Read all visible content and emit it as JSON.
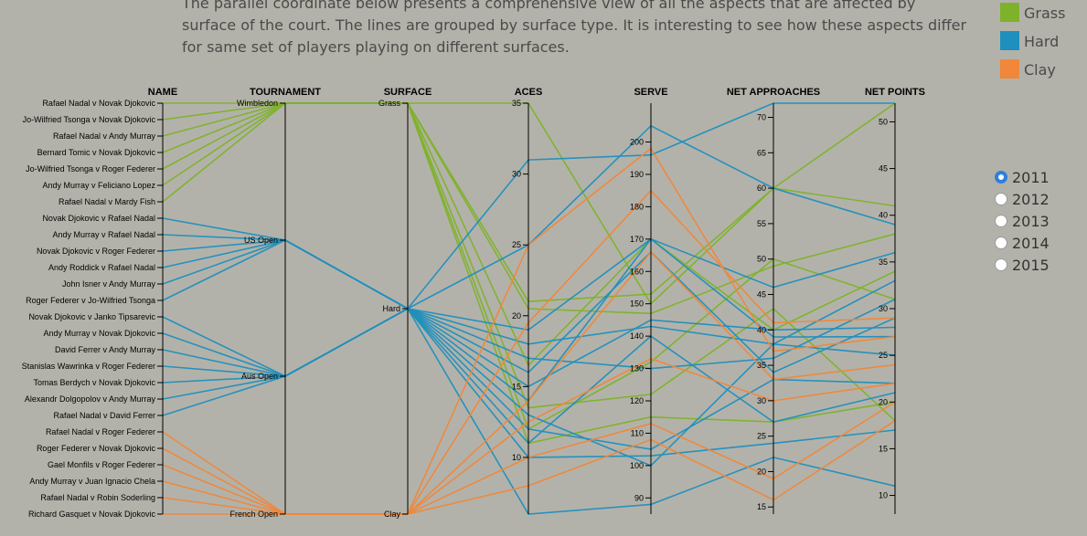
{
  "intro_text": "The parallel coordinate below presents a comprehensive view of all the aspects that are affected by surface of the court. The lines are grouped by surface type. It is interesting to see how these aspects differ for same set of players playing on different surfaces.",
  "legend": [
    {
      "label": "Grass",
      "color": "#7eb22a"
    },
    {
      "label": "Hard",
      "color": "#1f8fbd"
    },
    {
      "label": "Clay",
      "color": "#f0873a"
    }
  ],
  "year_picker": {
    "options": [
      "2011",
      "2012",
      "2013",
      "2014",
      "2015"
    ],
    "selected": "2011"
  },
  "chart_data": {
    "type": "parallel-coordinates",
    "colors": {
      "Grass": "#7eb22a",
      "Hard": "#1f8fbd",
      "Clay": "#f0873a"
    },
    "axes": [
      {
        "key": "name",
        "label": "NAME",
        "type": "categorical",
        "categories": [
          "Rafael Nadal v Novak Djokovic",
          "Jo-Wilfried Tsonga v Novak Djokovic",
          "Rafael Nadal v Andy Murray",
          "Bernard Tomic v Novak Djokovic",
          "Jo-Wilfried Tsonga v Roger Federer",
          "Andy Murray v Feliciano Lopez",
          "Rafael Nadal v Mardy Fish",
          "Novak Djokovic v Rafael Nadal",
          "Andy Murray v Rafael Nadal",
          "Novak Djokovic v Roger Federer",
          "Andy Roddick v Rafael Nadal",
          "John Isner v Andy Murray",
          "Roger Federer v Jo-Wilfried Tsonga",
          "Novak Djokovic v Janko Tipsarevic",
          "Andy Murray v Novak Djokovic",
          "David Ferrer v Andy Murray",
          "Stanislas Wawrinka v Roger Federer",
          "Tomas Berdych v Novak Djokovic",
          "Alexandr Dolgopolov v Andy Murray",
          "Rafael Nadal v David Ferrer",
          "Rafael Nadal v Roger Federer",
          "Roger Federer v Novak Djokovic",
          "Gael Monfils v Roger Federer",
          "Andy Murray v Juan Ignacio Chela",
          "Rafael Nadal v Robin Soderling",
          "Richard Gasquet v Novak Djokovic"
        ]
      },
      {
        "key": "tournament",
        "label": "TOURNAMENT",
        "type": "categorical",
        "categories": [
          "Wimbledon",
          "US Open",
          "Aus Open",
          "French Open"
        ]
      },
      {
        "key": "surface",
        "label": "SURFACE",
        "type": "categorical",
        "categories": [
          "Grass",
          "Hard",
          "Clay"
        ]
      },
      {
        "key": "aces",
        "label": "ACES",
        "type": "numeric",
        "domain": [
          6,
          35
        ],
        "ticks": [
          10,
          15,
          20,
          25,
          30,
          35
        ]
      },
      {
        "key": "serve",
        "label": "SERVE",
        "type": "numeric",
        "domain": [
          85,
          212
        ],
        "ticks": [
          90,
          100,
          110,
          120,
          130,
          140,
          150,
          160,
          170,
          180,
          190,
          200
        ]
      },
      {
        "key": "net_approaches",
        "label": "NET APPROACHES",
        "type": "numeric",
        "domain": [
          14,
          72
        ],
        "ticks": [
          15,
          20,
          25,
          30,
          35,
          40,
          45,
          50,
          55,
          60,
          65,
          70
        ]
      },
      {
        "key": "net_points",
        "label": "NET POINTS",
        "type": "numeric",
        "domain": [
          8,
          52
        ],
        "ticks": [
          10,
          15,
          20,
          25,
          30,
          35,
          40,
          45,
          50
        ]
      }
    ],
    "matches": [
      {
        "name": "Rafael Nadal v Novak Djokovic",
        "tournament": "Wimbledon",
        "surface": "Grass",
        "aces": 35,
        "serve": 150,
        "net_approaches": 60,
        "net_points": 52
      },
      {
        "name": "Jo-Wilfried Tsonga v Novak Djokovic",
        "tournament": "Wimbledon",
        "surface": "Grass",
        "aces": 21,
        "serve": 153,
        "net_approaches": 60,
        "net_points": 41
      },
      {
        "name": "Rafael Nadal v Andy Murray",
        "tournament": "Wimbledon",
        "surface": "Grass",
        "aces": 20.5,
        "serve": 147,
        "net_approaches": 49,
        "net_points": 38
      },
      {
        "name": "Bernard Tomic v Novak Djokovic",
        "tournament": "Wimbledon",
        "surface": "Grass",
        "aces": 16.5,
        "serve": 170,
        "net_approaches": 40,
        "net_points": 34
      },
      {
        "name": "Jo-Wilfried Tsonga v Roger Federer",
        "tournament": "Wimbledon",
        "surface": "Grass",
        "aces": 12,
        "serve": 132,
        "net_approaches": 50,
        "net_points": 31
      },
      {
        "name": "Andy Murray v Feliciano Lopez",
        "tournament": "Wimbledon",
        "surface": "Grass",
        "aces": 11,
        "serve": 115,
        "net_approaches": 27,
        "net_points": 20
      },
      {
        "name": "Rafael Nadal v Mardy Fish",
        "tournament": "Wimbledon",
        "surface": "Grass",
        "aces": 13.5,
        "serve": 122,
        "net_approaches": 43,
        "net_points": 18
      },
      {
        "name": "Novak Djokovic v Rafael Nadal",
        "tournament": "US Open",
        "surface": "Hard",
        "aces": 31,
        "serve": 196,
        "net_approaches": 72,
        "net_points": 52
      },
      {
        "name": "Andy Murray v Rafael Nadal",
        "tournament": "US Open",
        "surface": "Hard",
        "aces": 25,
        "serve": 205,
        "net_approaches": 60,
        "net_points": 39
      },
      {
        "name": "Novak Djokovic v Roger Federer",
        "tournament": "US Open",
        "surface": "Hard",
        "aces": 19,
        "serve": 170,
        "net_approaches": 46,
        "net_points": 36
      },
      {
        "name": "Andy Roddick v Rafael Nadal",
        "tournament": "US Open",
        "surface": "Hard",
        "aces": 18,
        "serve": 143,
        "net_approaches": 38,
        "net_points": 33
      },
      {
        "name": "John Isner v Andy Murray",
        "tournament": "US Open",
        "surface": "Hard",
        "aces": 17,
        "serve": 130,
        "net_approaches": 36,
        "net_points": 31
      },
      {
        "name": "Roger Federer v Jo-Wilfried Tsonga",
        "tournament": "US Open",
        "surface": "Hard",
        "aces": 16,
        "serve": 166,
        "net_approaches": 34,
        "net_points": 29
      },
      {
        "name": "Novak Djokovic v Janko Tipsarevic",
        "tournament": "Aus Open",
        "surface": "Hard",
        "aces": 15,
        "serve": 145,
        "net_approaches": 40,
        "net_points": 28
      },
      {
        "name": "Andy Murray v Novak Djokovic",
        "tournament": "Aus Open",
        "surface": "Hard",
        "aces": 14,
        "serve": 170,
        "net_approaches": 39,
        "net_points": 27
      },
      {
        "name": "David Ferrer v Andy Murray",
        "tournament": "Aus Open",
        "surface": "Hard",
        "aces": 13,
        "serve": 100,
        "net_approaches": 38,
        "net_points": 25
      },
      {
        "name": "Stanislas Wawrinka v Roger Federer",
        "tournament": "Aus Open",
        "surface": "Hard",
        "aces": 12,
        "serve": 105,
        "net_approaches": 33,
        "net_points": 22
      },
      {
        "name": "Tomas Berdych v Novak Djokovic",
        "tournament": "Aus Open",
        "surface": "Hard",
        "aces": 11,
        "serve": 140,
        "net_approaches": 27,
        "net_points": 21
      },
      {
        "name": "Alexandr Dolgopolov v Andy Murray",
        "tournament": "Aus Open",
        "surface": "Hard",
        "aces": 10,
        "serve": 103,
        "net_approaches": 24,
        "net_points": 17
      },
      {
        "name": "Rafael Nadal v David Ferrer",
        "tournament": "Aus Open",
        "surface": "Hard",
        "aces": 6,
        "serve": 88,
        "net_approaches": 22,
        "net_points": 11
      },
      {
        "name": "Rafael Nadal v Roger Federer",
        "tournament": "French Open",
        "surface": "Clay",
        "aces": 25,
        "serve": 198,
        "net_approaches": 37,
        "net_points": 27
      },
      {
        "name": "Roger Federer v Novak Djokovic",
        "tournament": "French Open",
        "surface": "Clay",
        "aces": 19.5,
        "serve": 185,
        "net_approaches": 41,
        "net_points": 29
      },
      {
        "name": "Gael Monfils v Roger Federer",
        "tournament": "French Open",
        "surface": "Clay",
        "aces": 14,
        "serve": 166,
        "net_approaches": 33,
        "net_points": 24
      },
      {
        "name": "Andy Murray v Juan Ignacio Chela",
        "tournament": "French Open",
        "surface": "Clay",
        "aces": 12.5,
        "serve": 133,
        "net_approaches": 30,
        "net_points": 22
      },
      {
        "name": "Rafael Nadal v Robin Soderling",
        "tournament": "French Open",
        "surface": "Clay",
        "aces": 10,
        "serve": 113,
        "net_approaches": 19,
        "net_points": 20
      },
      {
        "name": "Richard Gasquet v Novak Djokovic",
        "tournament": "French Open",
        "surface": "Clay",
        "aces": 8,
        "serve": 108,
        "net_approaches": 16,
        "net_points": 18
      }
    ]
  }
}
